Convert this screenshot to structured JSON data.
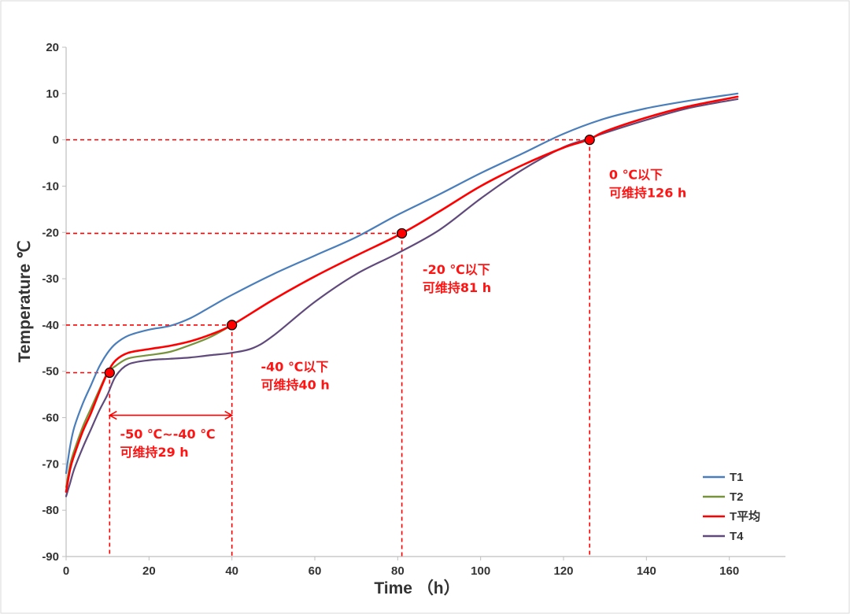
{
  "chart_data": {
    "type": "line",
    "xlabel": "Time （h）",
    "ylabel": "Temperature ℃",
    "xlim": [
      0,
      170
    ],
    "ylim": [
      -90,
      20
    ],
    "xticks": [
      0,
      20,
      40,
      60,
      80,
      100,
      120,
      140,
      160
    ],
    "yticks": [
      20,
      10,
      0,
      -10,
      -20,
      -30,
      -40,
      -50,
      -60,
      -70,
      -80,
      -90
    ],
    "grid": false,
    "legend_position": "bottom-right",
    "series": [
      {
        "name": "T1",
        "color": "#4a7ebb",
        "x": [
          0,
          1,
          2,
          4,
          6,
          8,
          10,
          12,
          15,
          20,
          25,
          30,
          35,
          40,
          50,
          60,
          70,
          80,
          90,
          100,
          110,
          120,
          130,
          140,
          150,
          162
        ],
        "y": [
          -72,
          -66,
          -62,
          -57,
          -53,
          -49,
          -46,
          -44,
          -42.3,
          -41,
          -40.2,
          -38.5,
          -36,
          -33.5,
          -29,
          -25,
          -21,
          -16.2,
          -11.8,
          -7.2,
          -3,
          1.3,
          4.6,
          6.8,
          8.4,
          10
        ]
      },
      {
        "name": "T2",
        "color": "#77933c",
        "x": [
          0,
          1,
          2,
          4,
          6,
          8,
          10,
          12,
          15,
          20,
          25,
          30,
          35,
          40
        ],
        "y": [
          -75,
          -70,
          -67,
          -62,
          -58,
          -54,
          -50.3,
          -48.8,
          -47.2,
          -46.5,
          -45.8,
          -44.3,
          -42.5,
          -40
        ]
      },
      {
        "name": "T平均",
        "color": "#ff0000",
        "x": [
          0,
          1,
          2,
          4,
          6,
          8,
          10,
          12,
          15,
          20,
          25,
          30,
          35,
          40,
          50,
          60,
          70,
          81,
          90,
          100,
          110,
          120,
          126,
          130,
          140,
          150,
          162
        ],
        "y": [
          -76,
          -71,
          -68,
          -63,
          -59,
          -54.5,
          -50.3,
          -47.6,
          -46,
          -45.2,
          -44.5,
          -43.5,
          -42,
          -40,
          -34.5,
          -29.5,
          -25,
          -20.2,
          -15.5,
          -10,
          -5.5,
          -1.7,
          0,
          1.8,
          4.8,
          7.2,
          9.3
        ]
      },
      {
        "name": "T4",
        "color": "#604a7b",
        "x": [
          0,
          1,
          2,
          4,
          6,
          8,
          10,
          12,
          15,
          20,
          25,
          30,
          35,
          40,
          45,
          50,
          60,
          70,
          80,
          90,
          100,
          110,
          120,
          126,
          130,
          140,
          150,
          162
        ],
        "y": [
          -77,
          -74,
          -71,
          -66.5,
          -62.5,
          -58.5,
          -55,
          -51,
          -48.5,
          -47.6,
          -47.3,
          -47,
          -46.5,
          -46,
          -45,
          -42.3,
          -35,
          -29,
          -24.5,
          -19.5,
          -12.7,
          -6.5,
          -1.6,
          0.2,
          1.5,
          4.3,
          6.8,
          8.8
        ]
      }
    ],
    "markers": [
      {
        "x": 10.5,
        "y": -50.3
      },
      {
        "x": 40,
        "y": -40
      },
      {
        "x": 81,
        "y": -20.2
      },
      {
        "x": 126.3,
        "y": 0
      }
    ],
    "reference_lines": [
      {
        "x": 10.5,
        "y": -50.3
      },
      {
        "x": 40,
        "y": -40
      },
      {
        "x": 81,
        "y": -20.2
      },
      {
        "x": 126.3,
        "y": 0
      }
    ],
    "range_arrow": {
      "x_start": 10.5,
      "x_end": 40,
      "y": -59.5
    },
    "annotations": [
      {
        "line1": "-50 ℃~-40 ℃",
        "line2": "可维持29 h",
        "x": 13,
        "y": -64.5
      },
      {
        "line1": "-40 ℃以下",
        "line2": "可维持40 h",
        "x": 47,
        "y": -50
      },
      {
        "line1": "-20 ℃以下",
        "line2": "可维持81 h",
        "x": 86,
        "y": -29
      },
      {
        "line1": "0 ℃以下",
        "line2": "可维持126 h",
        "x": 131,
        "y": -8.5
      }
    ],
    "annotation_color": "#ff1414"
  }
}
